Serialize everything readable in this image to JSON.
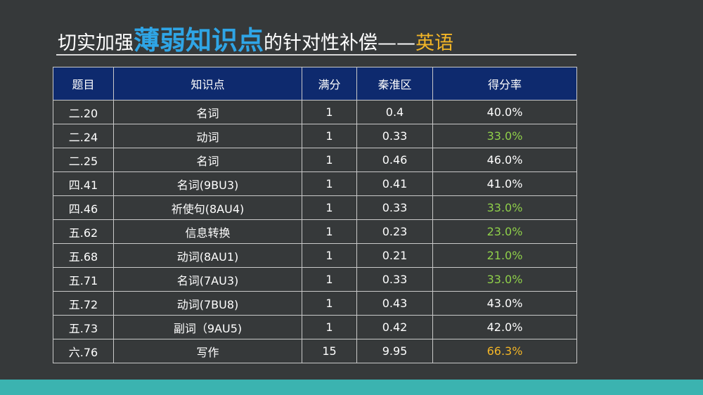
{
  "title": {
    "part1": "切实加强",
    "emphasis": "薄弱知识点",
    "part2": "的针对性补偿——",
    "subject": "英语",
    "emphasis_color": "#2fa5e6",
    "subject_color": "#f2b527"
  },
  "table": {
    "headers": [
      "题目",
      "知识点",
      "满分",
      "秦淮区",
      "得分率"
    ],
    "header_bg": "#0e2a6e",
    "rows": [
      {
        "item": "二.20",
        "point": "名词",
        "full": "1",
        "score": "0.4",
        "rate": "40.0%",
        "rate_color": "#ffffff"
      },
      {
        "item": "二.24",
        "point": "动词",
        "full": "1",
        "score": "0.33",
        "rate": "33.0%",
        "rate_color": "#8fcf4a"
      },
      {
        "item": "二.25",
        "point": "名词",
        "full": "1",
        "score": "0.46",
        "rate": "46.0%",
        "rate_color": "#ffffff"
      },
      {
        "item": "四.41",
        "point": "名词(9BU3)",
        "full": "1",
        "score": "0.41",
        "rate": "41.0%",
        "rate_color": "#ffffff"
      },
      {
        "item": "四.46",
        "point": "祈使句(8AU4)",
        "full": "1",
        "score": "0.33",
        "rate": "33.0%",
        "rate_color": "#8fcf4a"
      },
      {
        "item": "五.62",
        "point": "信息转换",
        "full": "1",
        "score": "0.23",
        "rate": "23.0%",
        "rate_color": "#8fcf4a"
      },
      {
        "item": "五.68",
        "point": "动词(8AU1)",
        "full": "1",
        "score": "0.21",
        "rate": "21.0%",
        "rate_color": "#8fcf4a"
      },
      {
        "item": "五.71",
        "point": "名词(7AU3)",
        "full": "1",
        "score": "0.33",
        "rate": "33.0%",
        "rate_color": "#8fcf4a"
      },
      {
        "item": "五.72",
        "point": "动词(7BU8)",
        "full": "1",
        "score": "0.43",
        "rate": "43.0%",
        "rate_color": "#ffffff"
      },
      {
        "item": "五.73",
        "point": "副词（9AU5)",
        "full": "1",
        "score": "0.42",
        "rate": "42.0%",
        "rate_color": "#ffffff"
      },
      {
        "item": "六.76",
        "point": "写作",
        "full": "15",
        "score": "9.95",
        "rate": "66.3%",
        "rate_color": "#f2b527"
      }
    ]
  }
}
